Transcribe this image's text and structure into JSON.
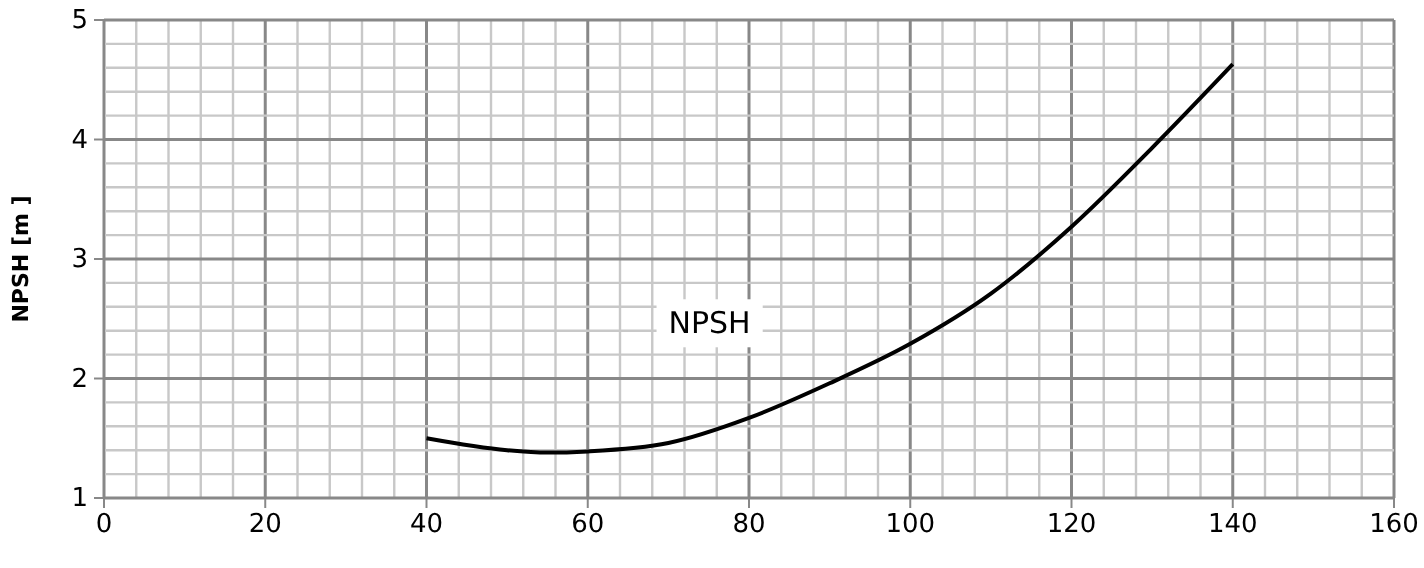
{
  "chart_data": {
    "type": "line",
    "ylabel": "NPSH [m ]",
    "xlim": [
      0,
      160
    ],
    "ylim": [
      1,
      5
    ],
    "xticks": [
      0,
      {
        "value": 4,
        "label": null
      },
      {
        "value": 8,
        "label": null
      },
      {
        "value": 12,
        "label": null
      },
      {
        "value": 16,
        "label": null
      },
      20,
      {
        "value": 24,
        "label": null
      },
      {
        "value": 28,
        "label": null
      },
      {
        "value": 32,
        "label": null
      },
      {
        "value": 36,
        "label": null
      },
      40,
      {
        "value": 44,
        "label": null
      },
      {
        "value": 48,
        "label": null
      },
      {
        "value": 52,
        "label": null
      },
      {
        "value": 56,
        "label": null
      },
      60,
      {
        "value": 64,
        "label": null
      },
      {
        "value": 68,
        "label": null
      },
      {
        "value": 72,
        "label": null
      },
      {
        "value": 76,
        "label": null
      },
      80,
      {
        "value": 84,
        "label": null
      },
      {
        "value": 88,
        "label": null
      },
      {
        "value": 92,
        "label": null
      },
      {
        "value": 96,
        "label": null
      },
      100,
      {
        "value": 104,
        "label": null
      },
      {
        "value": 108,
        "label": null
      },
      {
        "value": 112,
        "label": null
      },
      {
        "value": 116,
        "label": null
      },
      120,
      {
        "value": 124,
        "label": null
      },
      {
        "value": 128,
        "label": null
      },
      {
        "value": 132,
        "label": null
      },
      {
        "value": 136,
        "label": null
      },
      140,
      {
        "value": 144,
        "label": null
      },
      {
        "value": 148,
        "label": null
      },
      {
        "value": 152,
        "label": null
      },
      {
        "value": 156,
        "label": null
      },
      160
    ],
    "yticks": [
      1,
      {
        "value": 1.2,
        "label": null
      },
      {
        "value": 1.4,
        "label": null
      },
      {
        "value": 1.6,
        "label": null
      },
      {
        "value": 1.8,
        "label": null
      },
      2,
      {
        "value": 2.2,
        "label": null
      },
      {
        "value": 2.4,
        "label": null
      },
      {
        "value": 2.6,
        "label": null
      },
      {
        "value": 2.8,
        "label": null
      },
      3,
      {
        "value": 3.2,
        "label": null
      },
      {
        "value": 3.4,
        "label": null
      },
      {
        "value": 3.6,
        "label": null
      },
      {
        "value": 3.8,
        "label": null
      },
      4,
      {
        "value": 4.2,
        "label": null
      },
      {
        "value": 4.4,
        "label": null
      },
      {
        "value": 4.6,
        "label": null
      },
      {
        "value": 4.8,
        "label": null
      },
      5
    ],
    "grid": true,
    "line_style": "solid",
    "marker": "none",
    "series": [
      {
        "name": "NPSH",
        "color": "#000000",
        "x": [
          40,
          50,
          55,
          60,
          70,
          80,
          90,
          100,
          110,
          120,
          130,
          140
        ],
        "values": [
          1.5,
          1.4,
          1.38,
          1.39,
          1.46,
          1.67,
          1.96,
          2.29,
          2.71,
          3.27,
          3.93,
          4.63
        ]
      }
    ]
  }
}
